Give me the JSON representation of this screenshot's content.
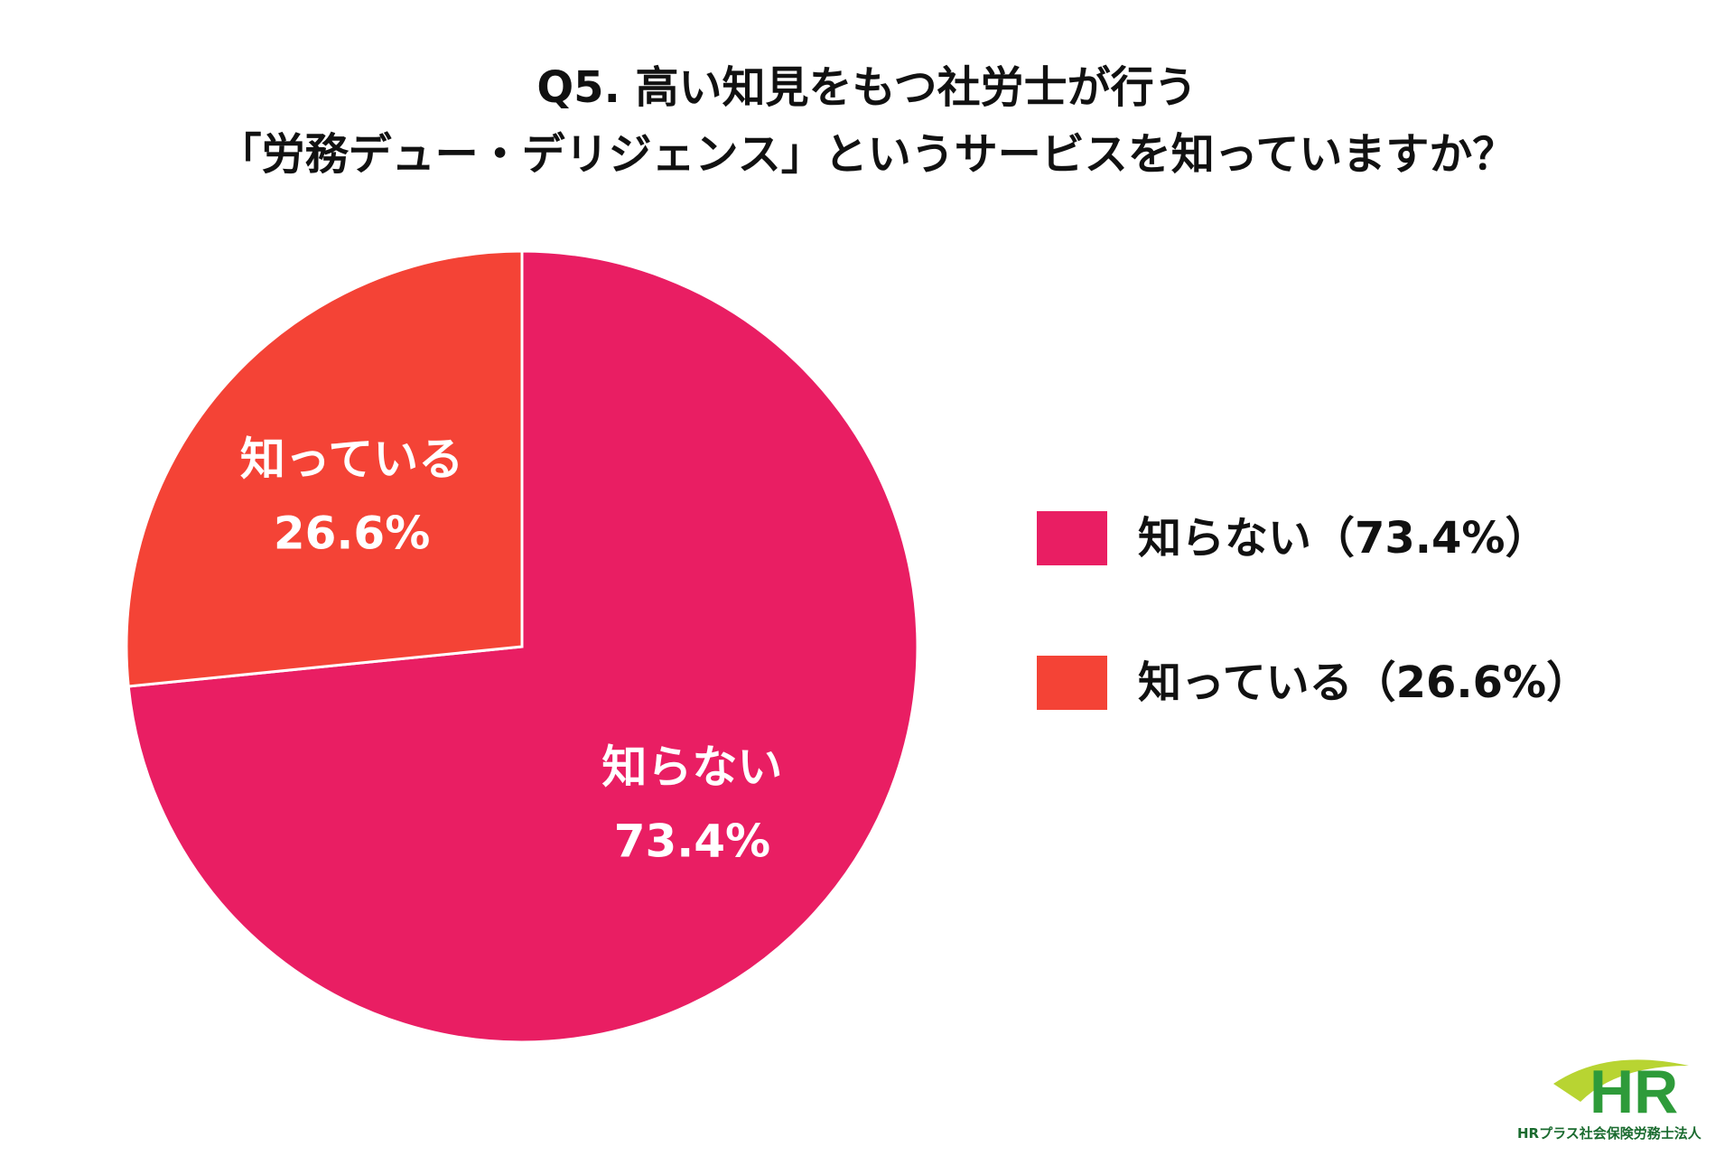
{
  "title": {
    "line1": "Q5. 高い知見をもつ社労士が行う",
    "line2": "「労務デュー・デリジェンス」というサービスを知っていますか？"
  },
  "chart_data": {
    "type": "pie",
    "title": "Q5. 高い知見をもつ社労士が行う「労務デュー・デリジェンス」というサービスを知っていますか？",
    "slices": [
      {
        "name": "知らない",
        "value": 73.4,
        "display": "73.4%",
        "color": "#e91e63"
      },
      {
        "name": "知っている",
        "value": 26.6,
        "display": "26.6%",
        "color": "#f44336"
      }
    ],
    "start": "12 o'clock",
    "direction": "clockwise",
    "legend_position": "right"
  },
  "legend": [
    {
      "label": "知らない（73.4%）",
      "color": "#e91e63"
    },
    {
      "label": "知っている（26.6%）",
      "color": "#f44336"
    }
  ],
  "logo": {
    "mark": "HR",
    "text": "HRプラス社会保険労務士法人"
  }
}
